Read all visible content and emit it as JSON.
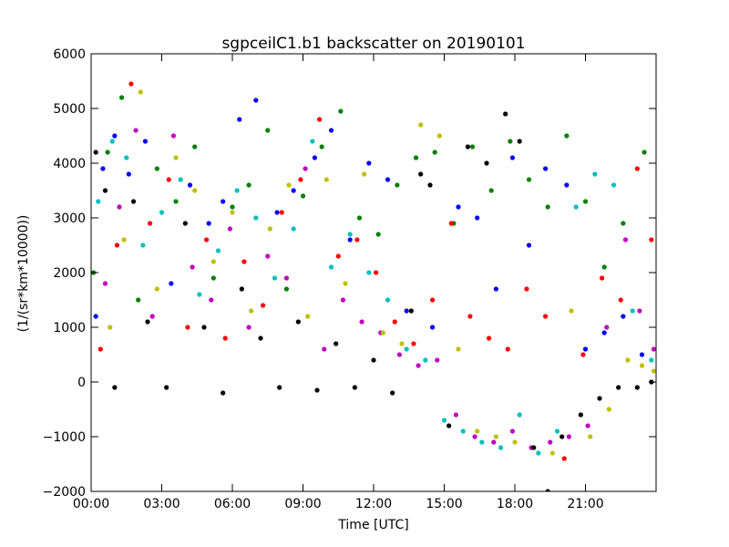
{
  "chart_data": {
    "type": "scatter",
    "title": "sgpceilC1.b1 backscatter on 20190101",
    "xlabel": "Time [UTC]",
    "ylabel": "(1/(sr*km*10000))",
    "xlim": [
      0,
      24
    ],
    "ylim": [
      -2000,
      6000
    ],
    "grid": false,
    "legend": "none",
    "x_ticks": [
      {
        "value": 0,
        "label": "00:00"
      },
      {
        "value": 3,
        "label": "03:00"
      },
      {
        "value": 6,
        "label": "06:00"
      },
      {
        "value": 9,
        "label": "09:00"
      },
      {
        "value": 12,
        "label": "12:00"
      },
      {
        "value": 15,
        "label": "15:00"
      },
      {
        "value": 18,
        "label": "18:00"
      },
      {
        "value": 21,
        "label": "21:00"
      }
    ],
    "y_ticks": [
      {
        "value": -2000,
        "label": "−2000"
      },
      {
        "value": -1000,
        "label": "−1000"
      },
      {
        "value": 0,
        "label": "0"
      },
      {
        "value": 1000,
        "label": "1000"
      },
      {
        "value": 2000,
        "label": "2000"
      },
      {
        "value": 3000,
        "label": "3000"
      },
      {
        "value": 4000,
        "label": "4000"
      },
      {
        "value": 5000,
        "label": "5000"
      },
      {
        "value": 6000,
        "label": "6000"
      }
    ],
    "series_colors": [
      "#0000ff",
      "#008000",
      "#ff0000",
      "#00bfbf",
      "#bf00bf",
      "#bfbf00",
      "#000000"
    ],
    "series": [
      {
        "color": "#0000ff",
        "x": [
          0.2,
          0.5,
          1.0,
          1.6,
          2.3,
          3.4,
          4.2,
          5.0,
          5.6,
          6.3,
          7.0,
          7.9,
          8.6,
          9.5,
          10.2,
          11.0,
          11.8,
          12.6,
          13.4,
          14.5,
          15.6,
          16.4,
          17.2,
          17.9,
          18.6,
          19.3,
          20.2,
          21.0,
          21.8,
          22.6,
          23.4
        ],
        "y": [
          1200,
          3900,
          4500,
          3800,
          4400,
          1800,
          3600,
          2900,
          3300,
          4800,
          5150,
          3100,
          3500,
          4100,
          4600,
          2600,
          4000,
          3700,
          1300,
          1000,
          3200,
          3000,
          1700,
          4100,
          2500,
          3900,
          3600,
          600,
          900,
          1200,
          500
        ]
      },
      {
        "color": "#008000",
        "x": [
          0.1,
          0.7,
          1.3,
          2.0,
          2.8,
          3.6,
          4.4,
          5.2,
          6.0,
          6.7,
          7.5,
          8.3,
          9.0,
          9.8,
          10.6,
          11.4,
          12.2,
          13.0,
          13.8,
          14.6,
          15.4,
          16.2,
          17.0,
          17.8,
          18.6,
          19.4,
          20.2,
          21.0,
          21.8,
          22.6,
          23.5
        ],
        "y": [
          2000,
          4200,
          5200,
          1500,
          3900,
          3300,
          4300,
          1900,
          3200,
          3600,
          4600,
          1700,
          3400,
          4300,
          4950,
          3000,
          2700,
          3600,
          4100,
          4200,
          2900,
          4300,
          3500,
          4400,
          3700,
          3200,
          4500,
          3300,
          2100,
          2900,
          4200
        ]
      },
      {
        "color": "#ff0000",
        "x": [
          0.4,
          1.1,
          1.7,
          2.5,
          3.3,
          4.1,
          4.9,
          5.7,
          6.5,
          7.3,
          8.1,
          8.9,
          9.7,
          10.5,
          11.3,
          12.1,
          12.9,
          13.7,
          14.5,
          15.3,
          16.1,
          16.9,
          17.7,
          18.5,
          19.3,
          20.1,
          20.9,
          21.7,
          22.5,
          23.2,
          23.8
        ],
        "y": [
          600,
          2500,
          5450,
          2900,
          3700,
          1000,
          2600,
          800,
          2200,
          1400,
          3100,
          3700,
          4800,
          2300,
          2600,
          2000,
          1100,
          700,
          1500,
          2900,
          1200,
          800,
          600,
          1700,
          1200,
          -1400,
          500,
          1900,
          1500,
          3900,
          2600
        ]
      },
      {
        "color": "#00bfbf",
        "x": [
          0.3,
          0.9,
          1.5,
          2.2,
          3.0,
          3.8,
          4.6,
          5.4,
          6.2,
          7.0,
          7.8,
          8.6,
          9.4,
          10.2,
          11.0,
          11.8,
          12.6,
          13.4,
          14.2,
          15.0,
          15.8,
          16.6,
          17.4,
          18.2,
          19.0,
          19.8,
          20.6,
          21.4,
          22.2,
          23.0,
          23.8
        ],
        "y": [
          3300,
          4400,
          4100,
          2500,
          3100,
          3700,
          1600,
          2400,
          3500,
          3000,
          1900,
          2800,
          4400,
          2100,
          2700,
          2000,
          1500,
          600,
          400,
          -700,
          -900,
          -1100,
          -1200,
          -600,
          -1300,
          -900,
          3200,
          3800,
          3600,
          1300,
          400
        ]
      },
      {
        "color": "#bf00bf",
        "x": [
          0.6,
          1.2,
          1.9,
          2.6,
          3.5,
          4.3,
          5.1,
          5.9,
          6.7,
          7.5,
          8.3,
          9.1,
          9.9,
          10.7,
          11.5,
          12.3,
          13.1,
          13.9,
          14.7,
          15.5,
          16.3,
          17.1,
          17.9,
          18.7,
          19.5,
          20.3,
          21.1,
          21.9,
          22.7,
          23.3,
          23.9
        ],
        "y": [
          1800,
          3200,
          4600,
          1200,
          4500,
          2100,
          1500,
          2800,
          1000,
          2300,
          1900,
          3900,
          600,
          1500,
          1100,
          900,
          500,
          300,
          400,
          -600,
          -1000,
          -1100,
          -900,
          -1200,
          -1100,
          -1000,
          -800,
          1000,
          2600,
          1300,
          600
        ]
      },
      {
        "color": "#bfbf00",
        "x": [
          0.8,
          1.4,
          2.1,
          2.8,
          3.6,
          4.4,
          5.2,
          6.0,
          6.8,
          7.6,
          8.4,
          9.2,
          10.0,
          10.8,
          11.6,
          12.4,
          13.2,
          14.0,
          14.8,
          15.6,
          16.4,
          17.2,
          18.0,
          18.8,
          19.6,
          20.4,
          21.2,
          22.0,
          22.8,
          23.4,
          23.9
        ],
        "y": [
          1000,
          2600,
          5300,
          1700,
          4100,
          3500,
          2200,
          3100,
          1300,
          2800,
          3600,
          1200,
          3700,
          1800,
          3800,
          900,
          700,
          4700,
          4500,
          600,
          -900,
          -1000,
          -1100,
          -1200,
          -1300,
          1300,
          -1000,
          -500,
          400,
          300,
          200
        ]
      },
      {
        "color": "#000000",
        "x": [
          0.2,
          0.6,
          1.0,
          1.8,
          2.4,
          3.2,
          4.0,
          4.8,
          5.6,
          6.4,
          7.2,
          8.0,
          8.8,
          9.6,
          10.4,
          11.2,
          12.0,
          12.8,
          13.6,
          14.0,
          14.4,
          15.2,
          16.0,
          16.8,
          17.6,
          18.2,
          18.8,
          19.4,
          20.0,
          20.8,
          21.6,
          22.4,
          23.2,
          23.8
        ],
        "y": [
          4200,
          3500,
          -100,
          3300,
          1100,
          -100,
          2900,
          1000,
          -200,
          1700,
          800,
          -100,
          1100,
          -150,
          700,
          -100,
          400,
          -200,
          1300,
          3800,
          3600,
          -800,
          4300,
          4000,
          4900,
          4400,
          -1200,
          -2000,
          -1000,
          -600,
          -300,
          -100,
          -100,
          0
        ]
      }
    ]
  }
}
